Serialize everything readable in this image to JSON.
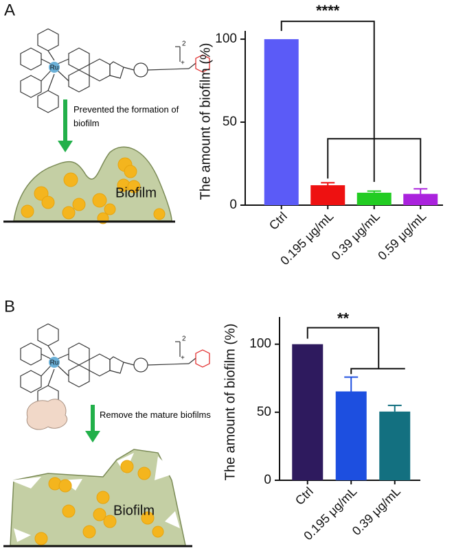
{
  "chart_data": [
    {
      "type": "bar",
      "panel": "A",
      "ylabel": "The amount of biofilm (%)",
      "categories": [
        "Ctrl",
        "0.195 μg/mL",
        "0.39 μg/mL",
        "0.59 μg/mL"
      ],
      "values": [
        100,
        12,
        7.5,
        6.8
      ],
      "errors": [
        0,
        1.5,
        1,
        3
      ],
      "colors": [
        "#5b5bf7",
        "#ee1111",
        "#22cc22",
        "#aa22dd"
      ],
      "ylim": [
        0,
        105
      ],
      "yticks": [
        0,
        50,
        100
      ],
      "annotations": [
        "****",
        "Prevented the formation of biofilm",
        "Biofilm",
        "Ru",
        "2",
        "+"
      ]
    },
    {
      "type": "bar",
      "panel": "B",
      "ylabel": "The amount of biofilm (%)",
      "categories": [
        "Ctrl",
        "0.195 μg/mL",
        "0.39 μg/mL"
      ],
      "values": [
        100,
        65.3,
        50.5
      ],
      "errors": [
        0,
        10.5,
        4.5
      ],
      "colors": [
        "#2e1a5e",
        "#1d4fe0",
        "#137080"
      ],
      "ylim": [
        0,
        120
      ],
      "yticks": [
        0,
        50,
        100
      ],
      "annotations": [
        "**",
        "Remove the mature biofilms",
        "Biofilm",
        "Ru",
        "2",
        "+"
      ]
    }
  ]
}
